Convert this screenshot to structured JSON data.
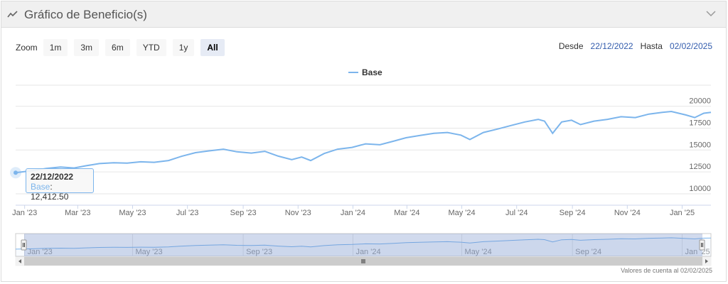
{
  "panel": {
    "title": "Gráfico de Beneficio(s)",
    "title_icon": "line-chart-icon",
    "collapse_icon": "chevron-down-icon"
  },
  "zoom": {
    "label": "Zoom",
    "buttons": [
      "1m",
      "3m",
      "6m",
      "YTD",
      "1y",
      "All"
    ],
    "active": "All"
  },
  "range": {
    "from_label": "Desde",
    "from_value": "22/12/2022",
    "to_label": "Hasta",
    "to_value": "02/02/2025"
  },
  "tooltip": {
    "date": "22/12/2022",
    "series": "Base",
    "value": "12,412.50"
  },
  "credit": "Valores de cuenta al 02/02/2025",
  "chart_data": {
    "type": "line",
    "title": "",
    "xlabel": "",
    "ylabel": "",
    "ylim": [
      10000,
      20000
    ],
    "yticks": [
      "10000",
      "12500",
      "15000",
      "17500",
      "20000"
    ],
    "ytick_values": [
      10000,
      12500,
      15000,
      17500,
      20000
    ],
    "xticks": [
      "Jan '23",
      "Mar '23",
      "May '23",
      "Jul '23",
      "Sep '23",
      "Nov '23",
      "Jan '24",
      "Mar '24",
      "May '24",
      "Jul '24",
      "Sep '24",
      "Nov '24",
      "Jan '25"
    ],
    "xtick_dates": [
      "2023-01-01",
      "2023-03-01",
      "2023-05-01",
      "2023-07-01",
      "2023-09-01",
      "2023-11-01",
      "2024-01-01",
      "2024-03-01",
      "2024-05-01",
      "2024-07-01",
      "2024-09-01",
      "2024-11-01",
      "2025-01-01"
    ],
    "navigator_ticks": [
      "Jan '23",
      "May '23",
      "Sep '23",
      "Jan '24",
      "May '24",
      "Sep '24",
      "Jan '25"
    ],
    "navigator_tick_dates": [
      "2023-01-01",
      "2023-05-01",
      "2023-09-01",
      "2024-01-01",
      "2024-05-01",
      "2024-09-01",
      "2025-01-01"
    ],
    "x_range": [
      "2022-12-22",
      "2025-02-02"
    ],
    "grid": true,
    "legend": "top-center",
    "series": [
      {
        "name": "Base",
        "color": "#7cb5ec",
        "points": [
          [
            "2022-12-22",
            12412.5
          ],
          [
            "2023-01-10",
            12650
          ],
          [
            "2023-01-25",
            12900
          ],
          [
            "2023-02-10",
            13050
          ],
          [
            "2023-02-25",
            12950
          ],
          [
            "2023-03-10",
            13200
          ],
          [
            "2023-03-25",
            13450
          ],
          [
            "2023-04-10",
            13550
          ],
          [
            "2023-04-25",
            13500
          ],
          [
            "2023-05-10",
            13650
          ],
          [
            "2023-05-25",
            13600
          ],
          [
            "2023-06-10",
            13800
          ],
          [
            "2023-06-25",
            14300
          ],
          [
            "2023-07-10",
            14700
          ],
          [
            "2023-07-25",
            14900
          ],
          [
            "2023-08-10",
            15100
          ],
          [
            "2023-08-25",
            14800
          ],
          [
            "2023-09-10",
            14650
          ],
          [
            "2023-09-25",
            14850
          ],
          [
            "2023-10-10",
            14300
          ],
          [
            "2023-10-25",
            13900
          ],
          [
            "2023-11-05",
            14200
          ],
          [
            "2023-11-15",
            13800
          ],
          [
            "2023-11-30",
            14600
          ],
          [
            "2023-12-15",
            15100
          ],
          [
            "2023-12-31",
            15300
          ],
          [
            "2024-01-15",
            15700
          ],
          [
            "2024-01-31",
            15600
          ],
          [
            "2024-02-15",
            16000
          ],
          [
            "2024-02-29",
            16400
          ],
          [
            "2024-03-15",
            16650
          ],
          [
            "2024-03-31",
            16900
          ],
          [
            "2024-04-15",
            17000
          ],
          [
            "2024-04-30",
            16700
          ],
          [
            "2024-05-10",
            16200
          ],
          [
            "2024-05-25",
            17000
          ],
          [
            "2024-06-10",
            17400
          ],
          [
            "2024-06-25",
            17800
          ],
          [
            "2024-07-10",
            18200
          ],
          [
            "2024-07-25",
            18500
          ],
          [
            "2024-08-01",
            18300
          ],
          [
            "2024-08-10",
            16900
          ],
          [
            "2024-08-20",
            18200
          ],
          [
            "2024-08-31",
            18400
          ],
          [
            "2024-09-10",
            17900
          ],
          [
            "2024-09-25",
            18300
          ],
          [
            "2024-10-10",
            18500
          ],
          [
            "2024-10-25",
            18800
          ],
          [
            "2024-11-10",
            18700
          ],
          [
            "2024-11-25",
            19100
          ],
          [
            "2024-12-10",
            19300
          ],
          [
            "2024-12-20",
            19400
          ],
          [
            "2025-01-05",
            19000
          ],
          [
            "2025-01-15",
            18700
          ],
          [
            "2025-01-25",
            19200
          ],
          [
            "2025-02-02",
            19300
          ]
        ]
      }
    ]
  }
}
